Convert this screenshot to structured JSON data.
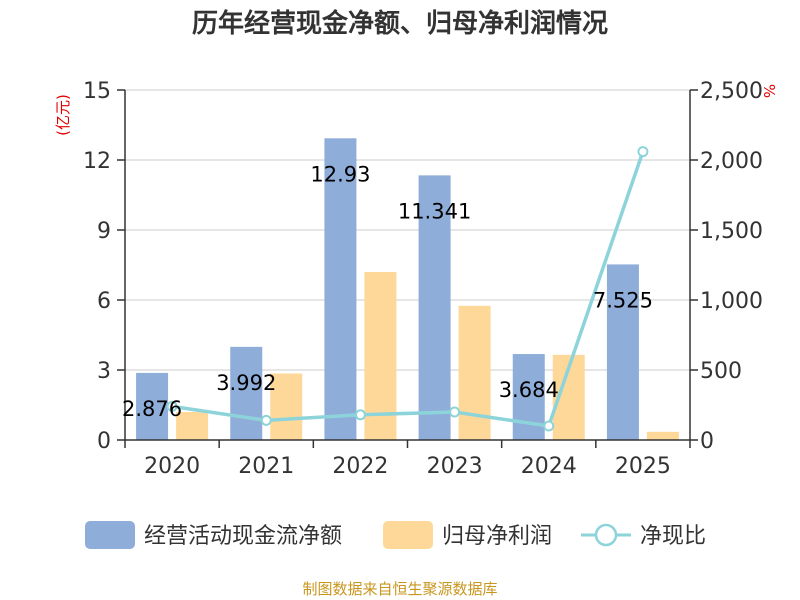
{
  "title": "历年经营现金净额、归母净利润情况",
  "source": "制图数据来自恒生聚源数据库",
  "chart_data": {
    "type": "bar",
    "categories": [
      "2020",
      "2021",
      "2022",
      "2023",
      "2024",
      "2025"
    ],
    "series": [
      {
        "name": "经营活动现金流净额",
        "values": [
          2.876,
          3.992,
          12.93,
          11.341,
          3.684,
          7.525
        ],
        "color": "#8eadd9",
        "axis": "left",
        "labels": [
          "2.876",
          "3.992",
          "12.93",
          "11.341",
          "3.684",
          "7.525"
        ]
      },
      {
        "name": "归母净利润",
        "values": [
          1.2,
          2.85,
          7.2,
          5.75,
          3.65,
          0.35
        ],
        "color": "#fed899",
        "axis": "left"
      },
      {
        "name": "净现比",
        "type": "line",
        "values": [
          240,
          140,
          180,
          200,
          100,
          2060
        ],
        "color": "#8dd4da",
        "axis": "right"
      }
    ],
    "left_axis": {
      "label": "(亿元)",
      "ylim": [
        0,
        15
      ],
      "ticks": [
        "0",
        "3",
        "6",
        "9",
        "12",
        "15"
      ]
    },
    "right_axis": {
      "label": "%",
      "ylim": [
        0,
        2500
      ],
      "ticks": [
        "0",
        "500",
        "1,000",
        "1,500",
        "2,000",
        "2,500"
      ]
    },
    "grid": true,
    "legend_position": "bottom"
  }
}
